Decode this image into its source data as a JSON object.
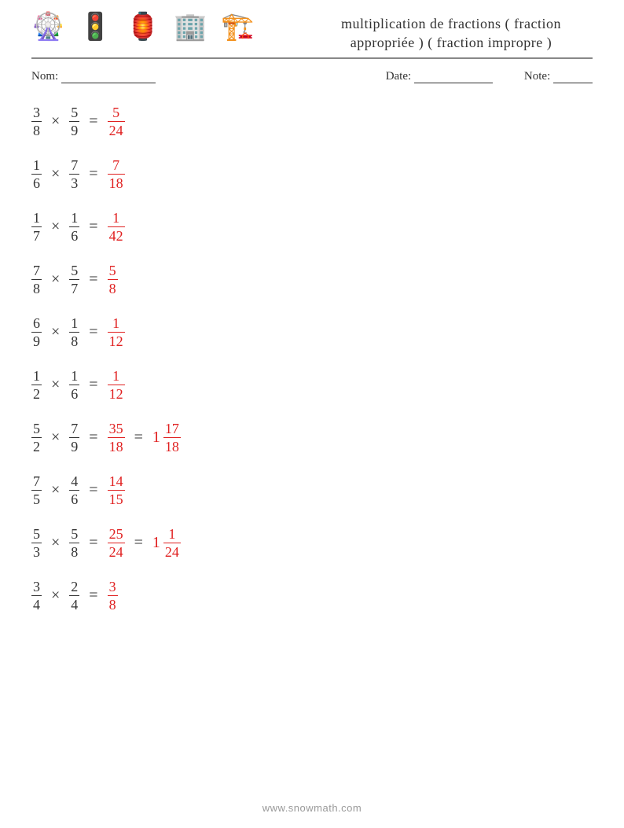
{
  "header": {
    "icons": [
      "🎡",
      "🚦",
      "🏮",
      "🏢",
      "🏗️"
    ],
    "title": "multiplication de fractions ( fraction appropriée ) ( fraction impropre )"
  },
  "meta": {
    "name_label": "Nom:",
    "date_label": "Date:",
    "note_label": "Note:"
  },
  "symbols": {
    "times": "×",
    "equals": "="
  },
  "colors": {
    "text": "#333333",
    "answer": "#e02020",
    "rule": "#888888"
  },
  "fontsizes": {
    "title": 18,
    "body": 20,
    "fraction": 18,
    "footer": 13
  },
  "problems": [
    {
      "a": {
        "n": 3,
        "d": 8
      },
      "b": {
        "n": 5,
        "d": 9
      },
      "ans": [
        {
          "n": 5,
          "d": 24
        }
      ]
    },
    {
      "a": {
        "n": 1,
        "d": 6
      },
      "b": {
        "n": 7,
        "d": 3
      },
      "ans": [
        {
          "n": 7,
          "d": 18
        }
      ]
    },
    {
      "a": {
        "n": 1,
        "d": 7
      },
      "b": {
        "n": 1,
        "d": 6
      },
      "ans": [
        {
          "n": 1,
          "d": 42
        }
      ]
    },
    {
      "a": {
        "n": 7,
        "d": 8
      },
      "b": {
        "n": 5,
        "d": 7
      },
      "ans": [
        {
          "n": 5,
          "d": 8
        }
      ]
    },
    {
      "a": {
        "n": 6,
        "d": 9
      },
      "b": {
        "n": 1,
        "d": 8
      },
      "ans": [
        {
          "n": 1,
          "d": 12
        }
      ]
    },
    {
      "a": {
        "n": 1,
        "d": 2
      },
      "b": {
        "n": 1,
        "d": 6
      },
      "ans": [
        {
          "n": 1,
          "d": 12
        }
      ]
    },
    {
      "a": {
        "n": 5,
        "d": 2
      },
      "b": {
        "n": 7,
        "d": 9
      },
      "ans": [
        {
          "n": 35,
          "d": 18
        },
        {
          "whole": 1,
          "n": 17,
          "d": 18
        }
      ]
    },
    {
      "a": {
        "n": 7,
        "d": 5
      },
      "b": {
        "n": 4,
        "d": 6
      },
      "ans": [
        {
          "n": 14,
          "d": 15
        }
      ]
    },
    {
      "a": {
        "n": 5,
        "d": 3
      },
      "b": {
        "n": 5,
        "d": 8
      },
      "ans": [
        {
          "n": 25,
          "d": 24
        },
        {
          "whole": 1,
          "n": 1,
          "d": 24
        }
      ]
    },
    {
      "a": {
        "n": 3,
        "d": 4
      },
      "b": {
        "n": 2,
        "d": 4
      },
      "ans": [
        {
          "n": 3,
          "d": 8
        }
      ]
    }
  ],
  "footer": "www.snowmath.com"
}
